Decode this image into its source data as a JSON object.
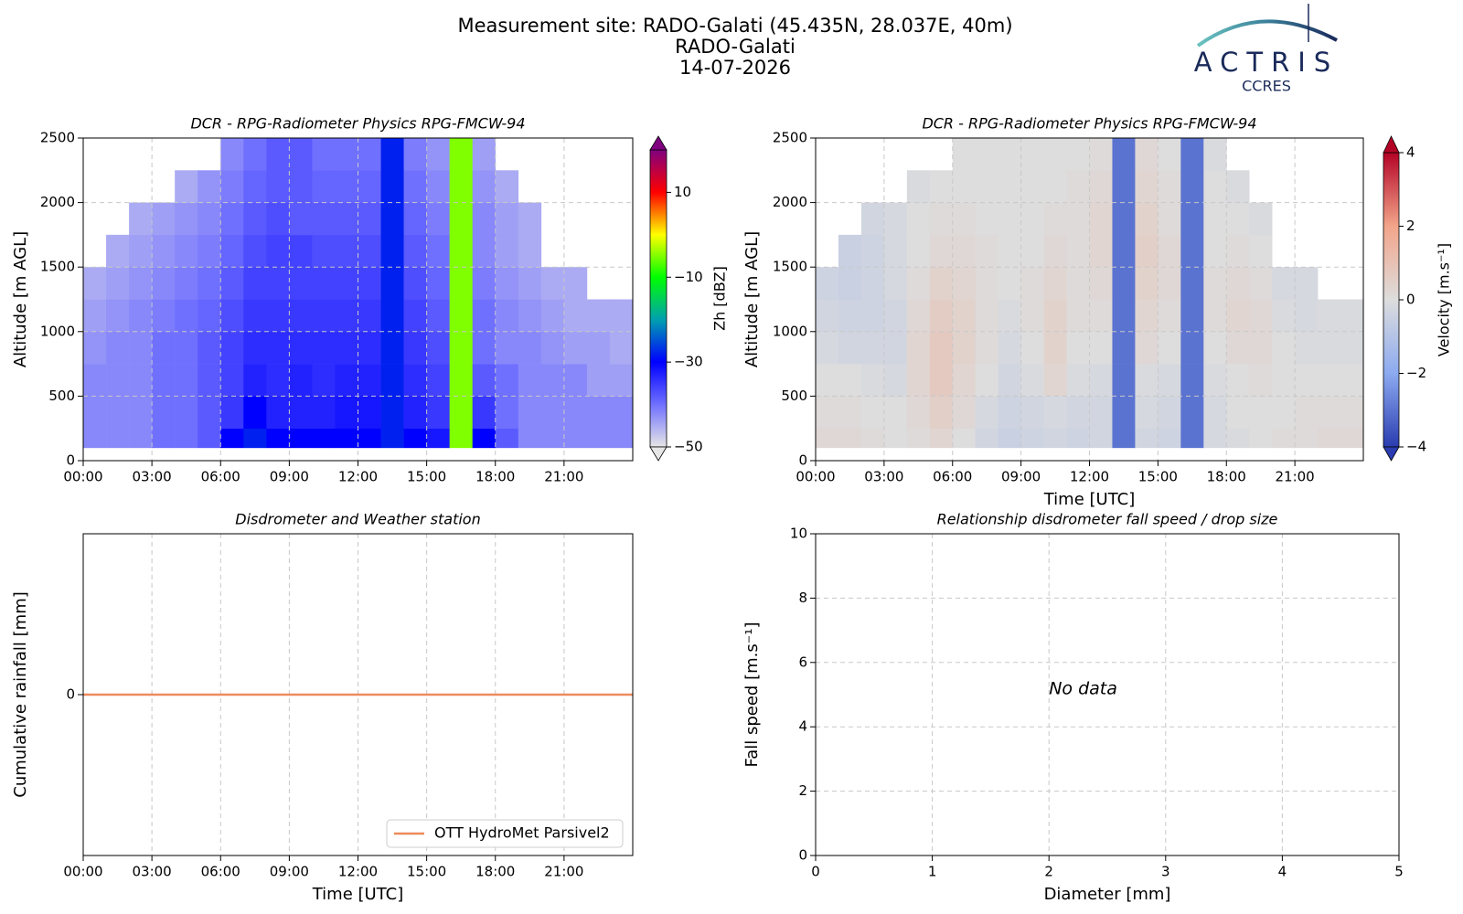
{
  "header": {
    "title": "Measurement site: RADO-Galati (45.435N, 28.037E, 40m)",
    "site": "RADO-Galati",
    "date": "14-07-2026",
    "logo": "ACTRIS",
    "logo_sub": "CCRES"
  },
  "chart_data": [
    {
      "type": "heatmap",
      "title": "DCR - RPG-Radiometer Physics RPG-FMCW-94",
      "ylabel": "Altitude [m AGL]",
      "x_edges": [
        0,
        1,
        2,
        3,
        4,
        5,
        6,
        7,
        8,
        9,
        10,
        11,
        12,
        13,
        14,
        15,
        16,
        17,
        18,
        19,
        20,
        21,
        22,
        23,
        24
      ],
      "y_edges": [
        100,
        250,
        500,
        750,
        1000,
        1250,
        1500,
        1750,
        2000,
        2250,
        2500
      ],
      "z": [
        [
          -42,
          -42,
          -42,
          -40,
          -40,
          -38,
          -30,
          -28,
          -30,
          -30,
          -30,
          -30,
          -30,
          -28,
          -30,
          -32,
          -5,
          -30,
          -38,
          -42,
          -42,
          -42,
          -42,
          -42
        ],
        [
          -42,
          -42,
          -42,
          -40,
          -40,
          -38,
          -35,
          -30,
          -33,
          -33,
          -33,
          -32,
          -32,
          -28,
          -33,
          -35,
          -5,
          -35,
          -40,
          -42,
          -42,
          -42,
          -42,
          -42
        ],
        [
          -42,
          -42,
          -42,
          -40,
          -40,
          -38,
          -36,
          -33,
          -34,
          -33,
          -34,
          -33,
          -33,
          -28,
          -34,
          -36,
          -5,
          -38,
          -40,
          -42,
          -42,
          -42,
          -44,
          -44
        ],
        [
          -43,
          -42,
          -42,
          -40,
          -40,
          -38,
          -36,
          -34,
          -34,
          -34,
          -34,
          -34,
          -34,
          -28,
          -35,
          -37,
          -5,
          -40,
          -42,
          -42,
          -43,
          -44,
          -44,
          -45
        ],
        [
          -44,
          -43,
          -42,
          -41,
          -40,
          -39,
          -37,
          -35,
          -35,
          -35,
          -35,
          -35,
          -35,
          -28,
          -36,
          -38,
          -5,
          -40,
          -42,
          -43,
          -44,
          -45,
          -45,
          -45
        ],
        [
          -45,
          -44,
          -43,
          -42,
          -41,
          -40,
          -38,
          -36,
          -36,
          -36,
          -36,
          -36,
          -36,
          -28,
          -37,
          -39,
          -5,
          -41,
          -43,
          -44,
          -45,
          -45,
          null,
          null
        ],
        [
          null,
          -45,
          -44,
          -43,
          -42,
          -41,
          -39,
          -37,
          -36,
          -36,
          -37,
          -37,
          -37,
          -28,
          -38,
          -40,
          -5,
          -42,
          -44,
          -45,
          null,
          null,
          null,
          null
        ],
        [
          null,
          null,
          -45,
          -44,
          -43,
          -42,
          -40,
          -38,
          -37,
          -38,
          -38,
          -38,
          -38,
          -28,
          -39,
          -41,
          -5,
          -42,
          -44,
          -45,
          null,
          null,
          null,
          null
        ],
        [
          null,
          null,
          null,
          null,
          -45,
          -43,
          -41,
          -39,
          -38,
          -38,
          -39,
          -39,
          -39,
          -28,
          -40,
          -42,
          -5,
          -43,
          -45,
          null,
          null,
          null,
          null,
          null
        ],
        [
          null,
          null,
          null,
          null,
          null,
          null,
          -42,
          -40,
          -38,
          -38,
          -40,
          -40,
          -40,
          -28,
          -41,
          -43,
          -5,
          -44,
          null,
          null,
          null,
          null,
          null,
          null
        ]
      ],
      "xlim": [
        0,
        24
      ],
      "xticks": [
        {
          "value": 0,
          "label": "00:00"
        },
        {
          "value": 3,
          "label": "03:00"
        },
        {
          "value": 6,
          "label": "06:00"
        },
        {
          "value": 9,
          "label": "09:00"
        },
        {
          "value": 12,
          "label": "12:00"
        },
        {
          "value": 15,
          "label": "15:00"
        },
        {
          "value": 18,
          "label": "18:00"
        },
        {
          "value": 21,
          "label": "21:00"
        }
      ],
      "ylim": [
        0,
        2500
      ],
      "yticks": [
        0,
        500,
        1000,
        1500,
        2000,
        2500
      ],
      "grid": true,
      "colorbar_label": "Zh [dBZ]",
      "clim": [
        -50,
        20
      ],
      "cticks": [
        {
          "value": -50,
          "label": "−50"
        },
        {
          "value": -30,
          "label": "−30"
        },
        {
          "value": -10,
          "label": "−10"
        },
        10
      ],
      "colormap": [
        "#e6e6e6",
        "#7070ff",
        "#0000ff",
        "#00a0b0",
        "#00ff00",
        "#ffff00",
        "#ff0000",
        "#800080"
      ]
    },
    {
      "type": "heatmap",
      "title": "DCR - RPG-Radiometer Physics RPG-FMCW-94",
      "ylabel": "Altitude [m AGL]",
      "xlabel": "Time [UTC]",
      "x_edges": [
        0,
        1,
        2,
        3,
        4,
        5,
        6,
        7,
        8,
        9,
        10,
        11,
        12,
        13,
        14,
        15,
        16,
        17,
        18,
        19,
        20,
        21,
        22,
        23,
        24
      ],
      "y_edges": [
        100,
        250,
        500,
        750,
        1000,
        1250,
        1500,
        1750,
        2000,
        2250,
        2500
      ],
      "z": [
        [
          0.2,
          0.2,
          0.1,
          0,
          0.1,
          0.3,
          0,
          -0.3,
          -0.5,
          -0.4,
          -0.3,
          -0.4,
          -0.3,
          -3,
          -0.3,
          -0.4,
          -3,
          -0.2,
          -0.1,
          0,
          0.1,
          0.1,
          0.2,
          0.2
        ],
        [
          0.1,
          0.1,
          0,
          0,
          0.2,
          0.5,
          0.2,
          -0.2,
          -0.4,
          -0.3,
          -0.2,
          -0.3,
          -0.3,
          -3,
          -0.2,
          -0.3,
          -3,
          -0.2,
          0,
          0,
          0,
          0.1,
          0.1,
          0.1
        ],
        [
          0,
          0,
          -0.1,
          -0.2,
          0.3,
          0.7,
          0.3,
          0,
          -0.3,
          -0.1,
          0.3,
          -0.1,
          -0.2,
          -3,
          -0.1,
          -0.2,
          -3,
          -0.1,
          0,
          0.1,
          0,
          0,
          0,
          0
        ],
        [
          -0.2,
          -0.3,
          -0.3,
          -0.3,
          0.3,
          0.7,
          0.4,
          0.1,
          -0.2,
          0,
          0.4,
          0,
          0,
          -3,
          0.2,
          0,
          -3,
          0,
          0.2,
          0.2,
          0,
          -0.1,
          -0.1,
          -0.1
        ],
        [
          -0.3,
          -0.4,
          -0.4,
          -0.3,
          0.2,
          0.6,
          0.4,
          0.1,
          -0.1,
          0.1,
          0.4,
          0.1,
          0.1,
          -3,
          0.3,
          0.1,
          -3,
          0.1,
          0.3,
          0.2,
          -0.1,
          -0.2,
          -0.1,
          -0.1
        ],
        [
          -0.4,
          -0.5,
          -0.4,
          -0.2,
          0.1,
          0.4,
          0.3,
          0.1,
          0,
          0.1,
          0.3,
          0.1,
          0.2,
          -3,
          0.4,
          0.2,
          -3,
          0.1,
          0.2,
          0.1,
          -0.2,
          -0.2,
          null,
          null
        ],
        [
          null,
          -0.5,
          -0.4,
          -0.2,
          0,
          0.2,
          0.2,
          0.1,
          0,
          0,
          0.2,
          0.1,
          0.3,
          -3,
          0.5,
          0.2,
          -3,
          0,
          0.1,
          0,
          null,
          null,
          null,
          null
        ],
        [
          null,
          null,
          -0.3,
          -0.2,
          0,
          0.1,
          0.1,
          0,
          0,
          0,
          0.1,
          0.1,
          0.3,
          -3,
          0.4,
          0.1,
          -3,
          0,
          0,
          -0.1,
          null,
          null,
          null,
          null
        ],
        [
          null,
          null,
          null,
          null,
          -0.1,
          0,
          0,
          0,
          0,
          0,
          0,
          0.1,
          0.2,
          -3,
          0.3,
          0.1,
          -3,
          0,
          -0.1,
          null,
          null,
          null,
          null,
          null
        ],
        [
          null,
          null,
          null,
          null,
          null,
          null,
          0,
          0,
          0,
          0,
          0,
          0,
          0.1,
          -3,
          0.2,
          0,
          -3,
          -0.1,
          null,
          null,
          null,
          null,
          null,
          null
        ]
      ],
      "xlim": [
        0,
        24
      ],
      "xticks": [
        {
          "value": 0,
          "label": "00:00"
        },
        {
          "value": 3,
          "label": "03:00"
        },
        {
          "value": 6,
          "label": "06:00"
        },
        {
          "value": 9,
          "label": "09:00"
        },
        {
          "value": 12,
          "label": "12:00"
        },
        {
          "value": 15,
          "label": "15:00"
        },
        {
          "value": 18,
          "label": "18:00"
        },
        {
          "value": 21,
          "label": "21:00"
        }
      ],
      "ylim": [
        0,
        2500
      ],
      "yticks": [
        0,
        500,
        1000,
        1500,
        2000,
        2500
      ],
      "grid": true,
      "colorbar_label": "Velocity [m.s⁻¹]",
      "clim": [
        -4,
        4
      ],
      "cticks": [
        {
          "value": -4,
          "label": "−4"
        },
        {
          "value": -2,
          "label": "−2"
        },
        0,
        2,
        4
      ],
      "colormap": [
        "#2a3cb0",
        "#8caaf0",
        "#dddddd",
        "#f2a58a",
        "#b40426"
      ]
    },
    {
      "type": "line",
      "title": "Disdrometer and Weather station",
      "ylabel": "Cumulative rainfall [mm]",
      "xlabel": "Time [UTC]",
      "x": [
        0,
        24
      ],
      "series": [
        {
          "name": "OTT HydroMet Parsivel2",
          "color": "#ee8a5a",
          "values": [
            0,
            0
          ]
        }
      ],
      "xlim": [
        0,
        24
      ],
      "xticks": [
        {
          "value": 0,
          "label": "00:00"
        },
        {
          "value": 3,
          "label": "03:00"
        },
        {
          "value": 6,
          "label": "06:00"
        },
        {
          "value": 9,
          "label": "09:00"
        },
        {
          "value": 12,
          "label": "12:00"
        },
        {
          "value": 15,
          "label": "15:00"
        },
        {
          "value": 18,
          "label": "18:00"
        },
        {
          "value": 21,
          "label": "21:00"
        }
      ],
      "ylim": [
        -0.055,
        0.055
      ],
      "yticks": [
        0
      ],
      "grid": true,
      "legend": "lower right"
    },
    {
      "type": "scatter",
      "title": "Relationship disdrometer fall speed / drop size",
      "ylabel": "Fall speed [m.s⁻¹]",
      "xlabel": "Diameter [mm]",
      "annotation": "No data",
      "xlim": [
        0,
        5
      ],
      "xticks": [
        0,
        1,
        2,
        3,
        4,
        5
      ],
      "ylim": [
        0,
        10
      ],
      "yticks": [
        0,
        2,
        4,
        6,
        8,
        10
      ],
      "grid": true
    }
  ]
}
